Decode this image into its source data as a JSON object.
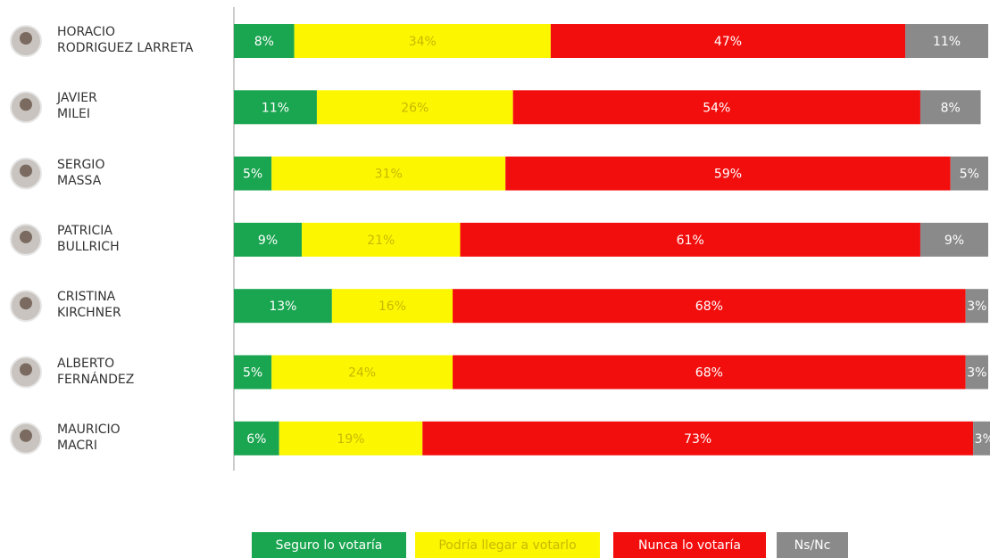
{
  "chart_data": {
    "type": "stacked-bar-horizontal",
    "categories": [
      "HORACIO\nRODRIGUEZ LARRETA",
      "JAVIER\nMILEI",
      "SERGIO\nMASSA",
      "PATRICIA\nBULLRICH",
      "CRISTINA\nKIRCHNER",
      "ALBERTO\nFERNÁNDEZ",
      "MAURICIO\nMACRI"
    ],
    "xlim": [
      0,
      100
    ],
    "series": [
      {
        "name": "Seguro lo votaría",
        "color": "#1aa550",
        "label_color": "#ffffff",
        "values": [
          8,
          11,
          5,
          9,
          13,
          5,
          6
        ],
        "value_labels": [
          "8%",
          "11%",
          "5%",
          "9%",
          "13%",
          "5%",
          "6%"
        ]
      },
      {
        "name": "Podría llegar a votarlo",
        "color": "#fcf700",
        "label_color": "#c9b800",
        "values": [
          34,
          26,
          31,
          21,
          16,
          24,
          19
        ],
        "value_labels": [
          "34%",
          "26%",
          "31%",
          "21%",
          "16%",
          "24%",
          "19%"
        ]
      },
      {
        "name": "Nunca lo votaría",
        "color": "#f30e0e",
        "label_color": "#ffffff",
        "values": [
          47,
          54,
          59,
          61,
          68,
          68,
          73
        ],
        "value_labels": [
          "47%",
          "54%",
          "59%",
          "61%",
          "68%",
          "68%",
          "73%"
        ]
      },
      {
        "name": "Ns/Nc",
        "color": "#8a8a8a",
        "label_color": "#ffffff",
        "values": [
          11,
          8,
          5,
          9,
          3,
          3,
          3
        ],
        "value_labels": [
          "11%",
          "8%",
          "5%",
          "9%",
          "3%",
          "3%",
          "3%"
        ]
      }
    ]
  }
}
